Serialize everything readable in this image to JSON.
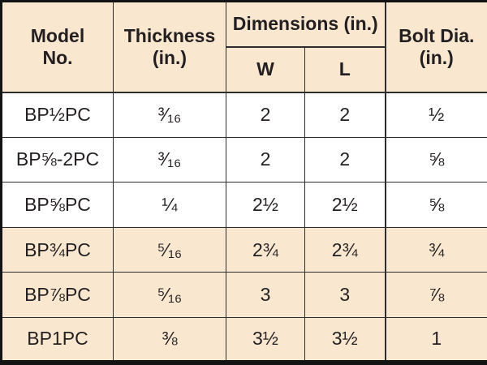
{
  "table": {
    "headers": {
      "model": "Model\nNo.",
      "thickness": "Thickness\n(in.)",
      "dimensions": "Dimensions (in.)",
      "w": "W",
      "l": "L",
      "bolt": "Bolt Dia.\n(in.)"
    },
    "rows": [
      {
        "model": "BP½PC",
        "thickness": "³⁄₁₆",
        "w": "2",
        "l": "2",
        "bolt": "½"
      },
      {
        "model": "BP⅝-2PC",
        "thickness": "³⁄₁₆",
        "w": "2",
        "l": "2",
        "bolt": "⅝"
      },
      {
        "model": "BP⅝PC",
        "thickness": "¼",
        "w": "2½",
        "l": "2½",
        "bolt": "⅝"
      },
      {
        "model": "BP¾PC",
        "thickness": "⁵⁄₁₆",
        "w": "2¾",
        "l": "2¾",
        "bolt": "¾"
      },
      {
        "model": "BP⅞PC",
        "thickness": "⁵⁄₁₆",
        "w": "3",
        "l": "3",
        "bolt": "⅞"
      },
      {
        "model": "BP1PC",
        "thickness": "⅜",
        "w": "3½",
        "l": "3½",
        "bolt": "1"
      }
    ]
  },
  "colors": {
    "band_cream": "#f9e7d0",
    "row_white": "#ffffff",
    "grid_line": "#2d2d2d",
    "outer_border": "#131313",
    "text": "#231f20"
  },
  "chart_data": {
    "type": "table",
    "title": "",
    "columns": [
      "Model No.",
      "Thickness (in.)",
      "Dimensions (in.) W",
      "Dimensions (in.) L",
      "Bolt Dia. (in.)"
    ],
    "rows": [
      [
        "BP1/2PC",
        "3/16",
        "2",
        "2",
        "1/2"
      ],
      [
        "BP5/8-2PC",
        "3/16",
        "2",
        "2",
        "5/8"
      ],
      [
        "BP5/8PC",
        "1/4",
        "2-1/2",
        "2-1/2",
        "5/8"
      ],
      [
        "BP3/4PC",
        "5/16",
        "2-3/4",
        "2-3/4",
        "3/4"
      ],
      [
        "BP7/8PC",
        "5/16",
        "3",
        "3",
        "7/8"
      ],
      [
        "BP1PC",
        "3/8",
        "3-1/2",
        "3-1/2",
        "1"
      ]
    ]
  }
}
